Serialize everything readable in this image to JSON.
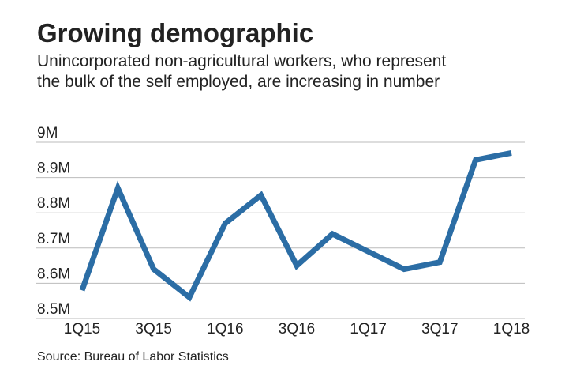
{
  "chart_data": {
    "type": "line",
    "title": "Growing demographic",
    "subtitle": [
      "Unincorporated non-agricultural workers, who represent",
      "the bulk of the self employed, are increasing in number"
    ],
    "source": "Source: Bureau of Labor Statistics",
    "categories": [
      "1Q15",
      null,
      "3Q15",
      null,
      "1Q16",
      null,
      "3Q16",
      null,
      "1Q17",
      null,
      "3Q17",
      null,
      "1Q18"
    ],
    "series": [
      {
        "name": "Unincorporated non-agricultural workers",
        "color": "#2b6da5",
        "values": [
          8.58,
          8.87,
          8.64,
          8.56,
          8.77,
          8.85,
          8.65,
          8.74,
          8.69,
          8.64,
          8.66,
          8.95,
          8.97
        ]
      }
    ],
    "ylim": [
      8.5,
      9
    ],
    "yticks": [
      {
        "value": 8.5,
        "label": "8.5M"
      },
      {
        "value": 8.6,
        "label": "8.6M"
      },
      {
        "value": 8.7,
        "label": "8.7M"
      },
      {
        "value": 8.8,
        "label": "8.8M"
      },
      {
        "value": 8.9,
        "label": "8.9M"
      },
      {
        "value": 9,
        "label": "9M"
      }
    ],
    "grid": true
  }
}
